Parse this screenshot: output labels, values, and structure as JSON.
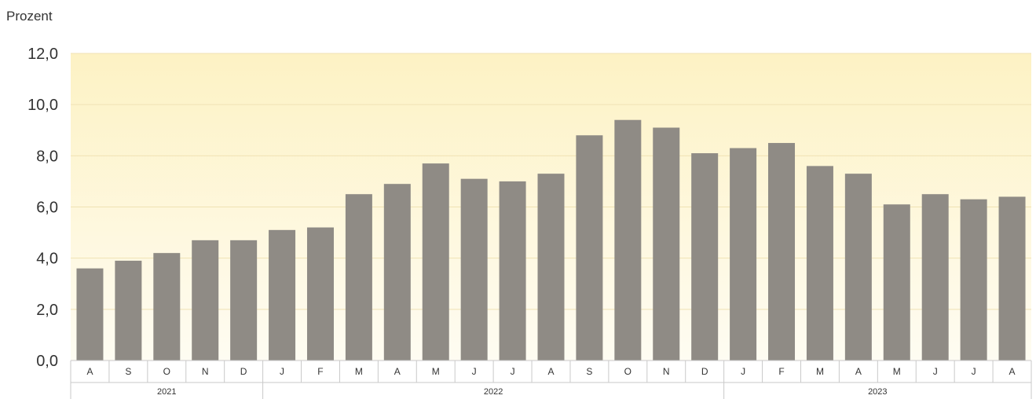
{
  "chart_data": {
    "type": "bar",
    "ylabel": "Prozent",
    "ylim": [
      0,
      12
    ],
    "yticks": [
      "0,0",
      "2,0",
      "4,0",
      "6,0",
      "8,0",
      "10,0",
      "12,0"
    ],
    "grid": true,
    "categories": [
      "A",
      "S",
      "O",
      "N",
      "D",
      "J",
      "F",
      "M",
      "A",
      "M",
      "J",
      "J",
      "A",
      "S",
      "O",
      "N",
      "D",
      "J",
      "F",
      "M",
      "A",
      "M",
      "J",
      "J",
      "A"
    ],
    "values": [
      3.6,
      3.9,
      4.2,
      4.7,
      4.7,
      5.1,
      5.2,
      6.5,
      6.9,
      7.7,
      7.1,
      7.0,
      7.3,
      8.8,
      9.4,
      9.1,
      8.1,
      8.3,
      8.5,
      7.6,
      7.3,
      6.1,
      6.5,
      6.3,
      6.4
    ],
    "year_groups": [
      {
        "label": "2021",
        "count": 5
      },
      {
        "label": "2022",
        "count": 12
      },
      {
        "label": "2023",
        "count": 8
      }
    ],
    "colors": {
      "bar": "#8f8b85",
      "background_top": "#fdf2c4",
      "background_bottom": "#fefcf2",
      "grid": "#f0e2b4",
      "axis": "#c9c9c9"
    }
  }
}
